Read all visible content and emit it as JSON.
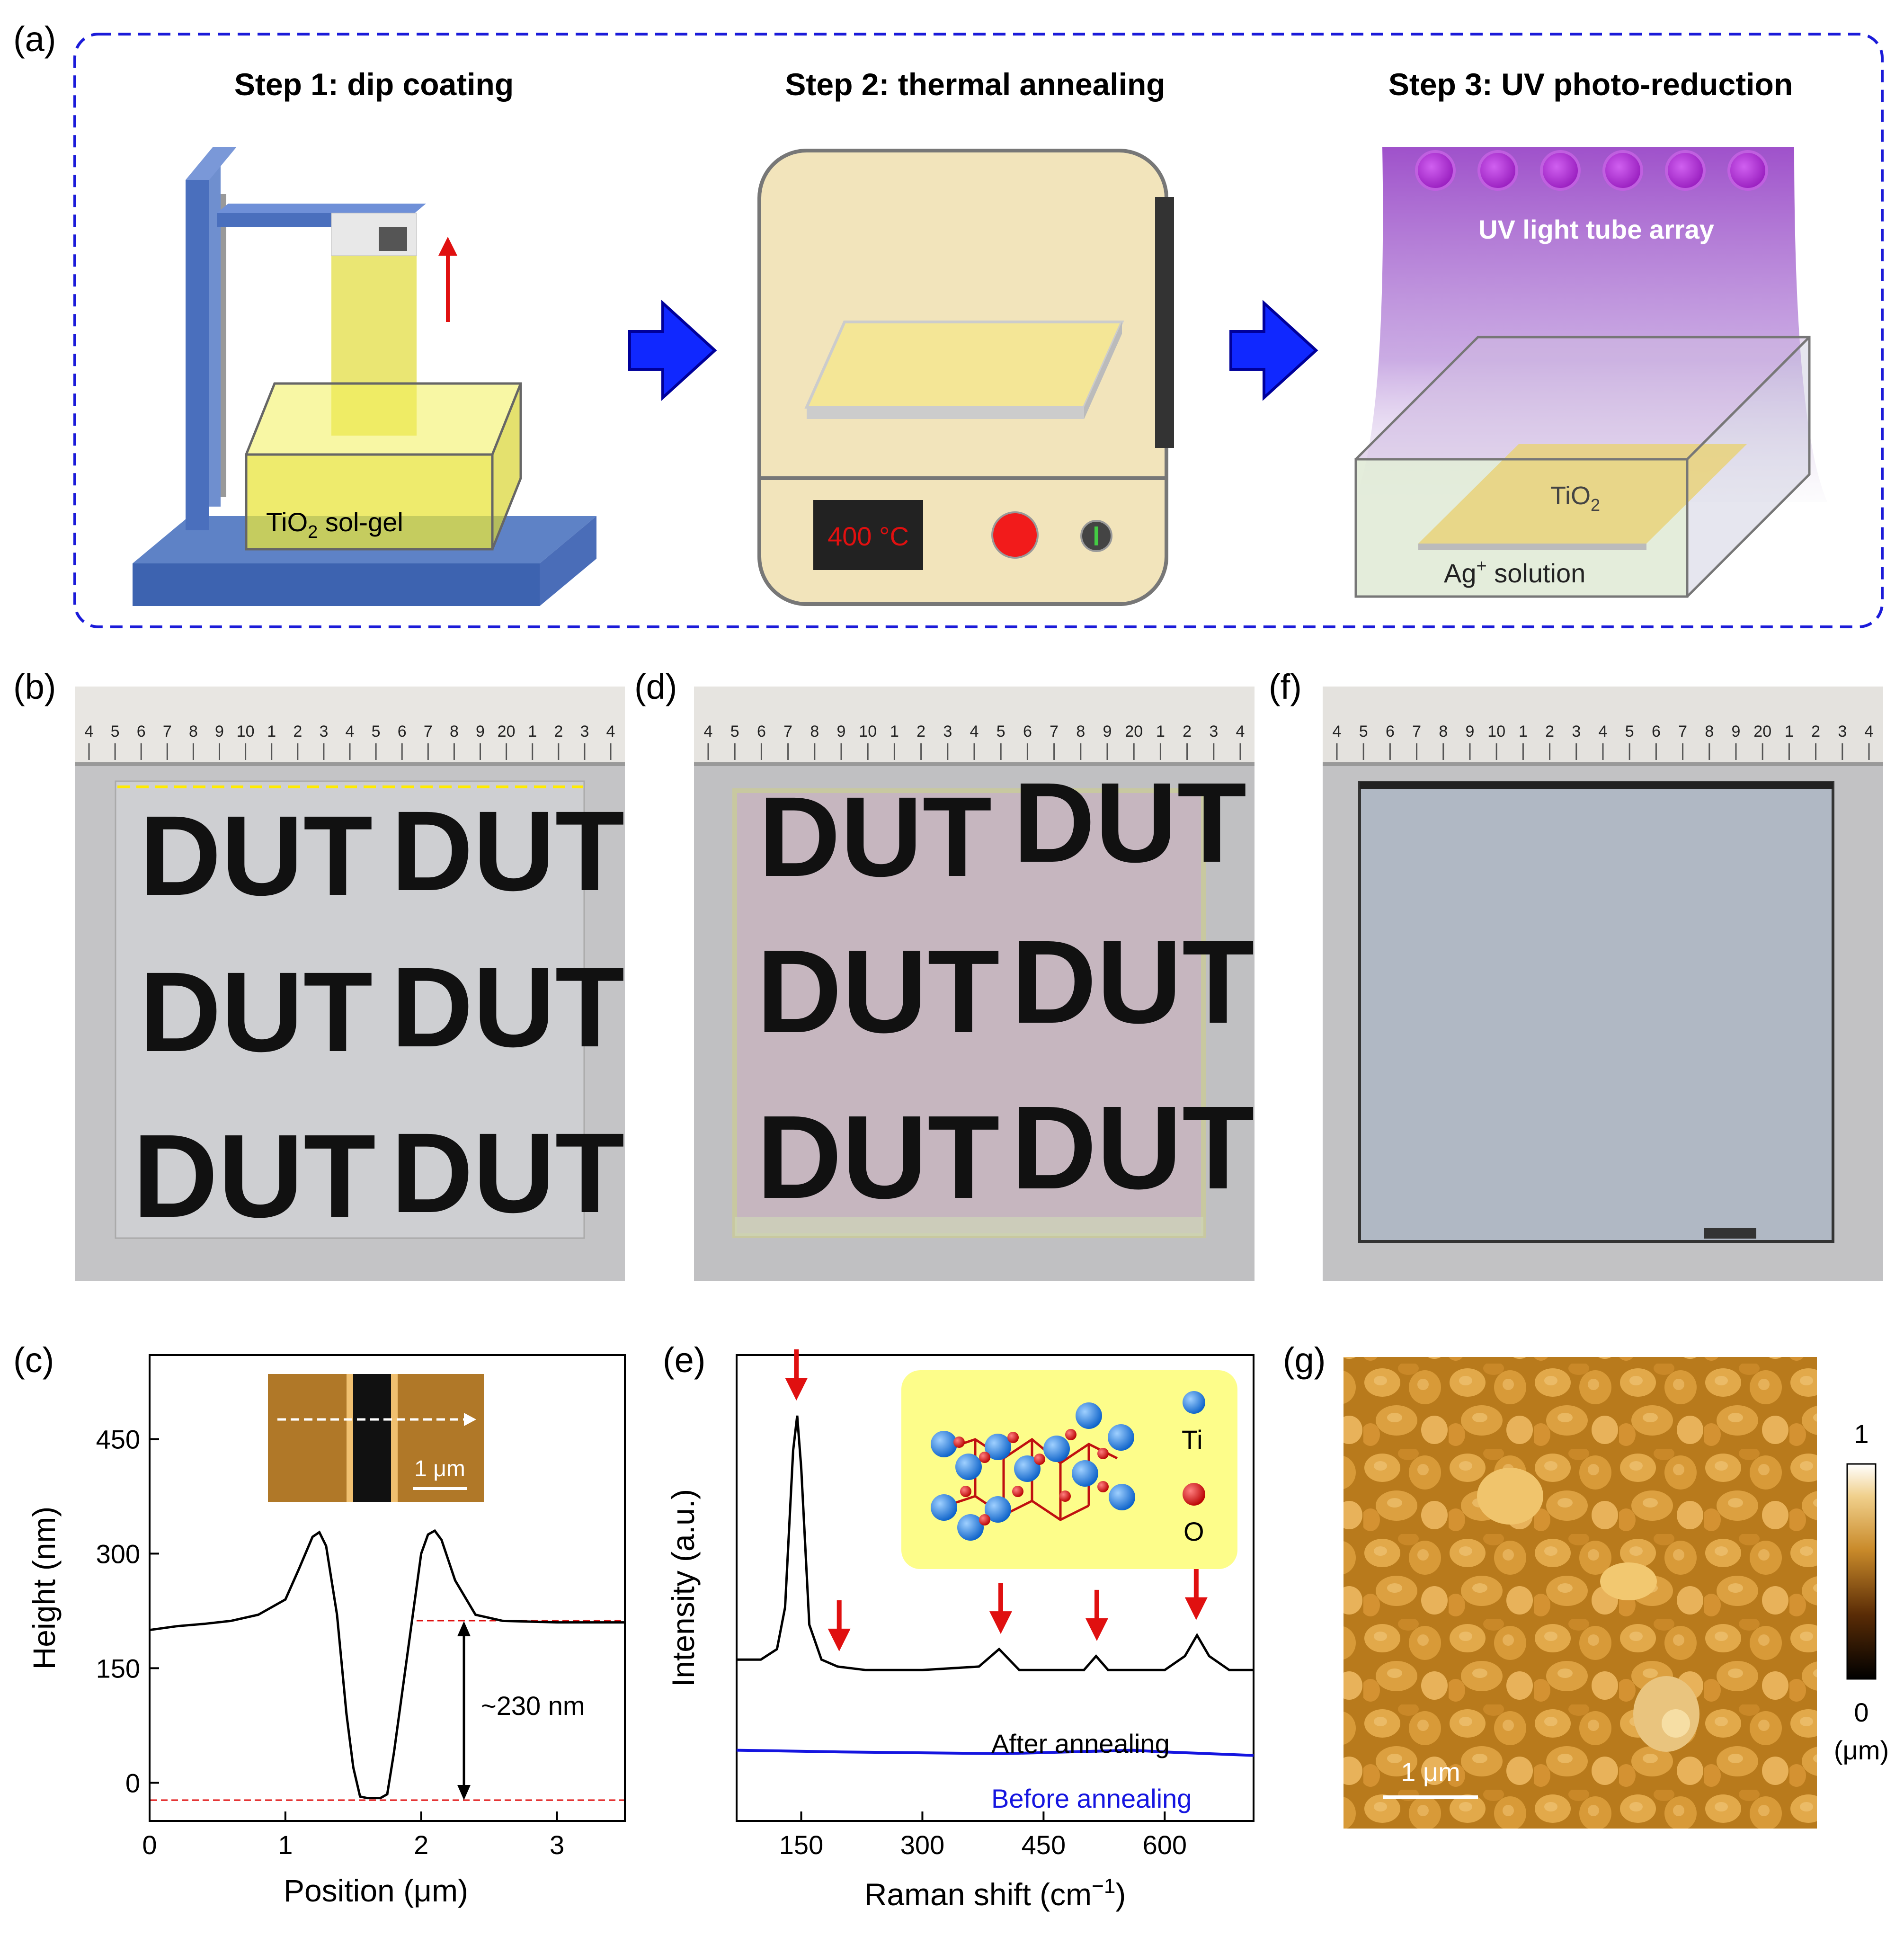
{
  "panel_labels": {
    "a": "(a)",
    "b": "(b)",
    "c": "(c)",
    "d": "(d)",
    "e": "(e)",
    "f": "(f)",
    "g": "(g)"
  },
  "steps": {
    "step1_title": "Step 1: dip coating",
    "step2_title": "Step 2: thermal annealing",
    "step3_title": "Step 3: UV photo-reduction",
    "sol_gel_label_main": "TiO",
    "sol_gel_label_sub": "2",
    "sol_gel_label_tail": " sol-gel",
    "oven_display": "400 °C",
    "uv_label": "UV light tube array",
    "tio2_main": "TiO",
    "tio2_sub": "2",
    "ag_main": "Ag",
    "ag_sup": "+",
    "ag_tail": " solution"
  },
  "ruler_numbers": [
    "4",
    "5",
    "6",
    "7",
    "8",
    "9",
    "10",
    "1",
    "2",
    "3",
    "4",
    "5",
    "6",
    "7",
    "8",
    "9",
    "20",
    "1",
    "2",
    "3",
    "4"
  ],
  "dut_text": "DUT",
  "chart_c": {
    "ylabel": "Height (nm)",
    "xlabel": "Position (μm)",
    "xticks": [
      "0",
      "1",
      "2",
      "3"
    ],
    "yticks": [
      "0",
      "150",
      "300",
      "450"
    ],
    "step_annotation": "~230 nm",
    "scale_bar": "1 μm"
  },
  "chart_e": {
    "ylabel": "Intensity (a.u.)",
    "xlabel_main": "Raman shift (cm",
    "xlabel_sup": "−1",
    "xlabel_tail": ")",
    "xticks": [
      "150",
      "300",
      "450",
      "600"
    ],
    "after_label": "After annealing",
    "before_label": "Before annealing",
    "ti_label": "Ti",
    "o_label": "O"
  },
  "panel_g": {
    "scale_bar": "1 μm",
    "cbar_max": "1",
    "cbar_min": "0",
    "cbar_unit": "(μm)"
  },
  "colors": {
    "accent_blue": "#1b1bd9",
    "red": "#e01010",
    "arrow_blue": "#1028ff",
    "uv": "#a040c8"
  },
  "chart_data": [
    {
      "type": "line",
      "title": "",
      "xlabel": "Position (μm)",
      "ylabel": "Height (nm)",
      "xlim": [
        0,
        3.5
      ],
      "ylim": [
        -50,
        560
      ],
      "series": [
        {
          "name": "",
          "x": [
            0,
            0.2,
            0.4,
            0.6,
            0.8,
            1.0,
            1.1,
            1.2,
            1.25,
            1.3,
            1.38,
            1.45,
            1.5,
            1.55,
            1.6,
            1.7,
            1.75,
            1.8,
            1.9,
            2.0,
            2.05,
            2.1,
            2.15,
            2.25,
            2.4,
            2.6,
            3.0,
            3.5
          ],
          "y": [
            200,
            205,
            208,
            212,
            220,
            240,
            280,
            322,
            328,
            310,
            220,
            90,
            20,
            -18,
            -20,
            -20,
            -15,
            40,
            170,
            300,
            325,
            330,
            318,
            265,
            220,
            212,
            210,
            210
          ]
        }
      ],
      "annotations": [
        "~230 nm"
      ]
    },
    {
      "type": "line",
      "title": "",
      "xlabel": "Raman shift (cm−1)",
      "ylabel": "Intensity (a.u.)",
      "xlim": [
        70,
        710
      ],
      "series": [
        {
          "name": "After annealing",
          "x": [
            70,
            100,
            120,
            130,
            140,
            145,
            150,
            160,
            175,
            195,
            230,
            300,
            370,
            395,
            420,
            500,
            515,
            530,
            600,
            625,
            640,
            655,
            680,
            710
          ],
          "y": [
            0.3,
            0.3,
            0.33,
            0.45,
            0.9,
            1.0,
            0.85,
            0.4,
            0.3,
            0.28,
            0.27,
            0.27,
            0.28,
            0.33,
            0.27,
            0.27,
            0.31,
            0.27,
            0.27,
            0.31,
            0.37,
            0.31,
            0.27,
            0.27
          ]
        },
        {
          "name": "Before annealing",
          "x": [
            70,
            200,
            400,
            560,
            600,
            710
          ],
          "y": [
            0.04,
            0.035,
            0.03,
            0.04,
            0.035,
            0.025
          ]
        }
      ],
      "peaks_marked": [
        144,
        197,
        397,
        516,
        639
      ]
    }
  ]
}
